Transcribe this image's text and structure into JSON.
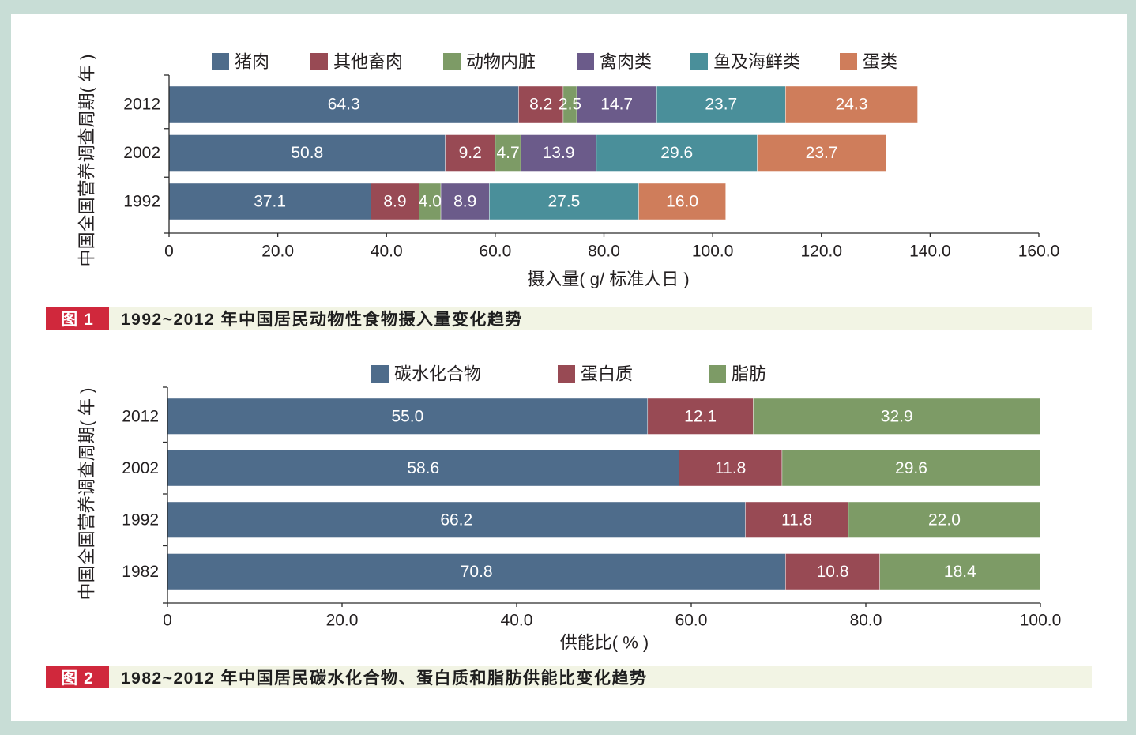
{
  "theme": {
    "frame": "#c8ddd6",
    "panel": "#ffffff",
    "caption_tag": "#d0283c",
    "caption_band": "#f2f4e4"
  },
  "chart_data": [
    {
      "type": "bar",
      "orientation": "horizontal",
      "stacked": true,
      "figure_label": "图 1",
      "title": "1992~2012 年中国居民动物性食物摄入量变化趋势",
      "xlabel": "摄入量( g/ 标准人日 )",
      "ylabel": "中国全国营养调查周期( 年 )",
      "xlim": [
        0,
        160
      ],
      "xticks": [
        "0",
        "20.0",
        "40.0",
        "60.0",
        "80.0",
        "100.0",
        "120.0",
        "140.0",
        "160.0"
      ],
      "grid": false,
      "legend": "top",
      "categories": [
        "2012",
        "2002",
        "1992"
      ],
      "series": [
        {
          "name": "猪肉",
          "color": "#4e6c8b",
          "values": [
            64.3,
            50.8,
            37.1
          ]
        },
        {
          "name": "其他畜肉",
          "color": "#984a54",
          "values": [
            8.2,
            9.2,
            8.9
          ]
        },
        {
          "name": "动物内脏",
          "color": "#7d9b66",
          "values": [
            2.5,
            4.7,
            4.0
          ]
        },
        {
          "name": "禽肉类",
          "color": "#6b5b8a",
          "values": [
            14.7,
            13.9,
            8.9
          ]
        },
        {
          "name": "鱼及海鲜类",
          "color": "#4a8f9a",
          "values": [
            23.7,
            29.6,
            27.5
          ]
        },
        {
          "name": "蛋类",
          "color": "#cf7d5b",
          "values": [
            24.3,
            23.7,
            16.0
          ]
        }
      ]
    },
    {
      "type": "bar",
      "orientation": "horizontal",
      "stacked": true,
      "figure_label": "图 2",
      "title": "1982~2012 年中国居民碳水化合物、蛋白质和脂肪供能比变化趋势",
      "xlabel": "供能比( % )",
      "ylabel": "中国全国营养调查周期( 年 )",
      "xlim": [
        0,
        100
      ],
      "xticks": [
        "0",
        "20.0",
        "40.0",
        "60.0",
        "80.0",
        "100.0"
      ],
      "grid": false,
      "legend": "top",
      "categories": [
        "2012",
        "2002",
        "1992",
        "1982"
      ],
      "series": [
        {
          "name": "碳水化合物",
          "color": "#4e6c8b",
          "values": [
            55.0,
            58.6,
            66.2,
            70.8
          ]
        },
        {
          "name": "蛋白质",
          "color": "#984a54",
          "values": [
            12.1,
            11.8,
            11.8,
            10.8
          ]
        },
        {
          "name": "脂肪",
          "color": "#7d9b66",
          "values": [
            32.9,
            29.6,
            22.0,
            18.4
          ]
        }
      ]
    }
  ]
}
